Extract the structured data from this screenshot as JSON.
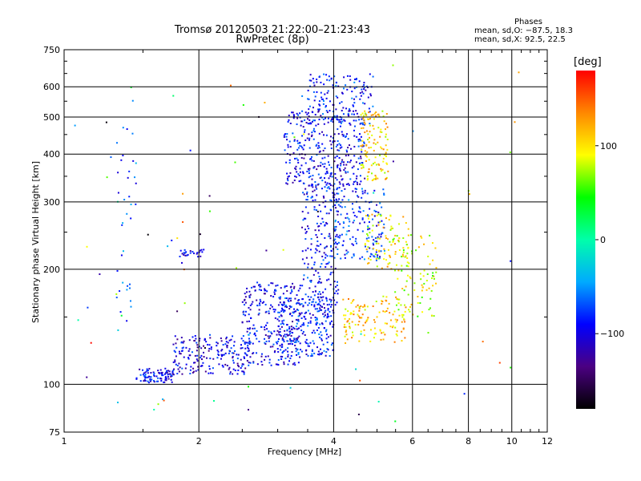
{
  "header": {
    "title_line1": "Tromsø 20120503 21:22:00–21:23:43",
    "title_line2": "RwPretec (8p)"
  },
  "phases_box": {
    "heading": "Phases",
    "line1": "mean, sd,O: −87.5, 18.3",
    "line2": "mean, sd,X:  92.5, 22.5"
  },
  "colorbar": {
    "title": "[deg]",
    "ticks": [
      "100",
      "0",
      "−100"
    ],
    "tick_values": [
      100,
      0,
      -100
    ],
    "range": [
      -180,
      180
    ],
    "stops": [
      "#000000",
      "#4b0082",
      "#0000ff",
      "#00aaff",
      "#00ffaa",
      "#00ff00",
      "#ffff00",
      "#ff8800",
      "#ff0000"
    ]
  },
  "chart_data": {
    "type": "scatter",
    "xlabel": "Frequency [MHz]",
    "ylabel": "Stationary phase Virtual Height [km]",
    "xscale": "log",
    "yscale": "log",
    "xlim": [
      1,
      12
    ],
    "ylim": [
      75,
      750
    ],
    "xticks": [
      1,
      2,
      4,
      6,
      8,
      10,
      12
    ],
    "xtick_labels": [
      "1",
      "2",
      "4",
      "6",
      "8",
      "10",
      "12"
    ],
    "yticks": [
      75,
      100,
      200,
      300,
      400,
      500,
      600,
      750
    ],
    "ytick_labels": [
      "75",
      "100",
      "200",
      "300",
      "400",
      "500",
      "600",
      "750"
    ],
    "grid": true,
    "clusters": [
      {
        "f": [
          1.45,
          1.75
        ],
        "h": [
          101,
          110
        ],
        "phase": -95,
        "n": 90
      },
      {
        "f": [
          1.75,
          2.6
        ],
        "h": [
          106,
          135
        ],
        "phase": -100,
        "n": 200
      },
      {
        "f": [
          2.5,
          3.4
        ],
        "h": [
          112,
          185
        ],
        "phase": -95,
        "n": 280
      },
      {
        "f": [
          3.0,
          4.0
        ],
        "h": [
          118,
          170
        ],
        "phase": -85,
        "n": 230
      },
      {
        "f": [
          3.4,
          4.1
        ],
        "h": [
          150,
          340
        ],
        "phase": -90,
        "n": 230
      },
      {
        "f": [
          3.1,
          4.7
        ],
        "h": [
          330,
          520
        ],
        "phase": -95,
        "n": 340
      },
      {
        "f": [
          3.5,
          4.9
        ],
        "h": [
          480,
          650
        ],
        "phase": -85,
        "n": 150
      },
      {
        "f": [
          4.0,
          5.2
        ],
        "h": [
          210,
          330
        ],
        "phase": -80,
        "n": 170
      },
      {
        "f": [
          4.2,
          5.8
        ],
        "h": [
          128,
          170
        ],
        "phase": 110,
        "n": 130
      },
      {
        "f": [
          4.7,
          5.9
        ],
        "h": [
          200,
          280
        ],
        "phase": 100,
        "n": 90
      },
      {
        "f": [
          4.6,
          5.3
        ],
        "h": [
          340,
          520
        ],
        "phase": 105,
        "n": 120
      },
      {
        "f": [
          5.4,
          6.8
        ],
        "h": [
          150,
          250
        ],
        "phase": 85,
        "n": 90
      },
      {
        "f": [
          1.8,
          2.05
        ],
        "h": [
          215,
          225
        ],
        "phase": -100,
        "n": 22
      },
      {
        "f": [
          1.3,
          1.45
        ],
        "h": [
          140,
          560
        ],
        "phase": -70,
        "n": 35
      },
      {
        "f": [
          1.05,
          11.5
        ],
        "h": [
          80,
          700
        ],
        "phase": 0,
        "n": 80
      }
    ],
    "points": [
      [
        1.95,
        220,
        -100
      ],
      [
        2.05,
        225,
        -95
      ],
      [
        1.85,
        218,
        -110
      ],
      [
        4.6,
        420,
        120
      ],
      [
        4.8,
        430,
        110
      ],
      [
        4.7,
        400,
        100
      ],
      [
        4.6,
        160,
        130
      ],
      [
        4.9,
        160,
        140
      ],
      [
        5.0,
        150,
        110
      ],
      [
        3.6,
        630,
        -90
      ],
      [
        4.3,
        640,
        -85
      ],
      [
        4.5,
        630,
        -80
      ]
    ]
  }
}
